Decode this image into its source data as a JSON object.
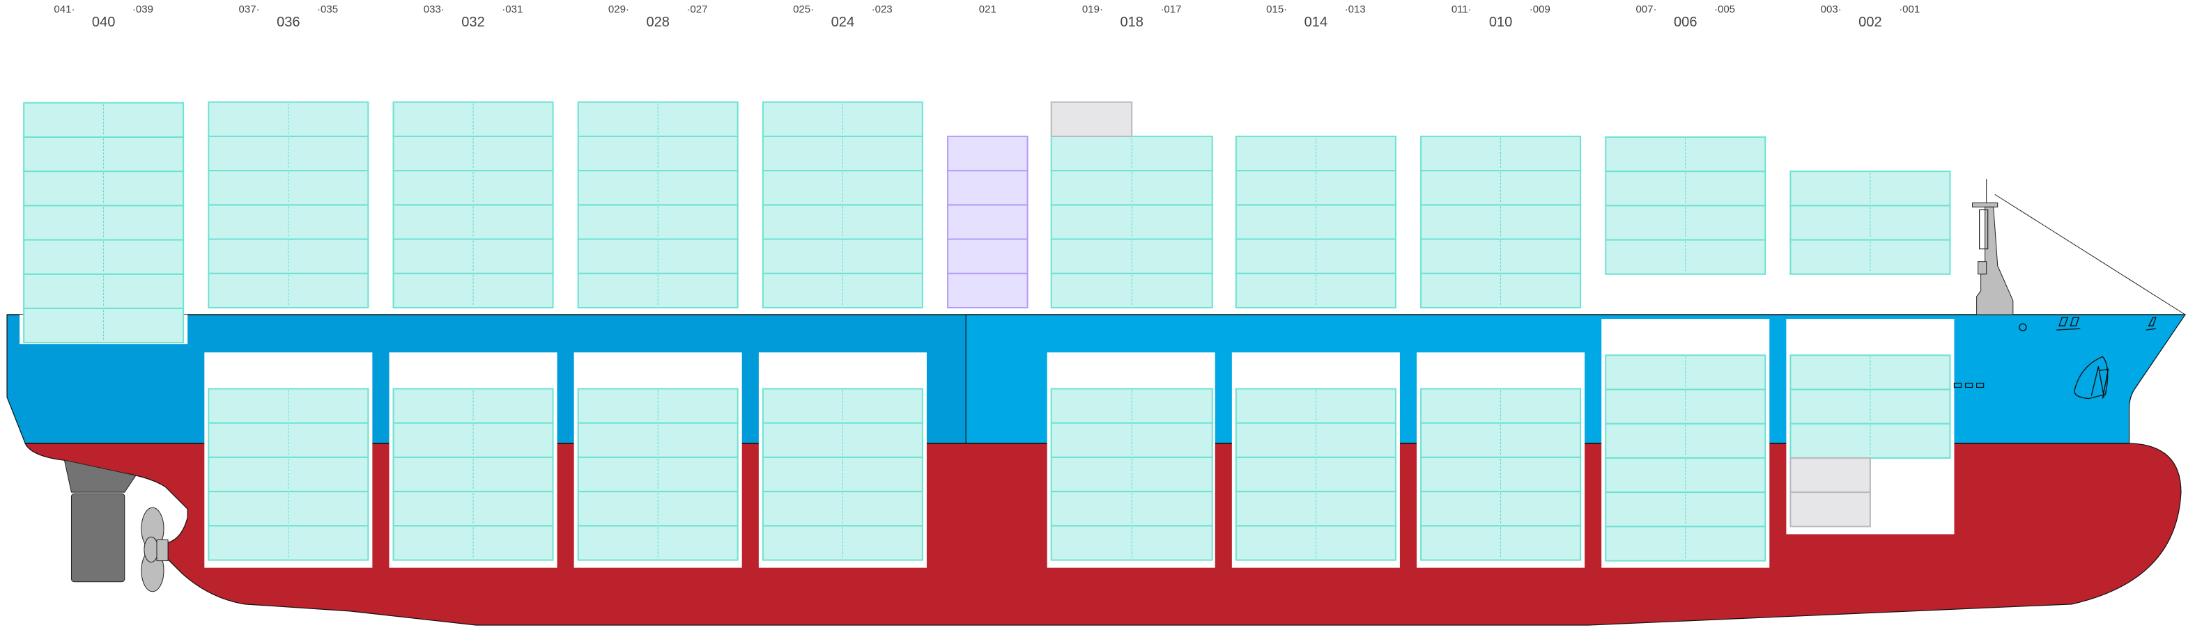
{
  "colors": {
    "hull_topside": "#00a9e5",
    "hull_topside_stern": "#009bd8",
    "hull_bottom": "#bb222b",
    "loaded_fill": "#c9f3ee",
    "loaded_stroke": "#6ce2d3",
    "loaded_tier_line": "#40d5c2",
    "special_fill": "#e6e0ff",
    "special_stroke": "#b59cf7",
    "empty_fill": "#e6e6e8",
    "empty_stroke": "#b9b9bd",
    "rudder": "#737373",
    "propeller": "#bdbdbd",
    "superstructure": "#bdbdbd"
  },
  "bays": [
    {
      "label": "040",
      "left": "041·",
      "right": "·039",
      "deck_tiers": 7,
      "deck_status": "loaded",
      "hold_tiers": 0
    },
    {
      "label": "036",
      "left": "037·",
      "right": "·035",
      "deck_tiers": 6,
      "deck_status": "loaded",
      "hold_tiers": 5
    },
    {
      "label": "032",
      "left": "033·",
      "right": "·031",
      "deck_tiers": 6,
      "deck_status": "loaded",
      "hold_tiers": 5
    },
    {
      "label": "028",
      "left": "029·",
      "right": "·027",
      "deck_tiers": 6,
      "deck_status": "loaded",
      "hold_tiers": 5
    },
    {
      "label": "024",
      "left": "025·",
      "right": "·023",
      "deck_tiers": 6,
      "deck_status": "loaded",
      "hold_tiers": 5
    },
    {
      "label": "021",
      "left": "",
      "right": "",
      "deck_tiers": 5,
      "deck_status": "special",
      "hold_tiers": 0
    },
    {
      "label": "018",
      "left": "019·",
      "right": "·017",
      "deck_tiers": 5,
      "deck_status": "loaded",
      "hold_tiers": 5,
      "deck_extra_20ft_empty": 1
    },
    {
      "label": "014",
      "left": "015·",
      "right": "·013",
      "deck_tiers": 5,
      "deck_status": "loaded",
      "hold_tiers": 5
    },
    {
      "label": "010",
      "left": "011·",
      "right": "·009",
      "deck_tiers": 5,
      "deck_status": "loaded",
      "hold_tiers": 5
    },
    {
      "label": "006",
      "left": "007·",
      "right": "·005",
      "deck_tiers": 4,
      "deck_status": "loaded",
      "hold_tiers": 6
    },
    {
      "label": "002",
      "left": "003·",
      "right": "·001",
      "deck_tiers": 3,
      "deck_status": "loaded",
      "hold_tiers": 3,
      "hold_extra_20ft_empty": 2
    }
  ]
}
